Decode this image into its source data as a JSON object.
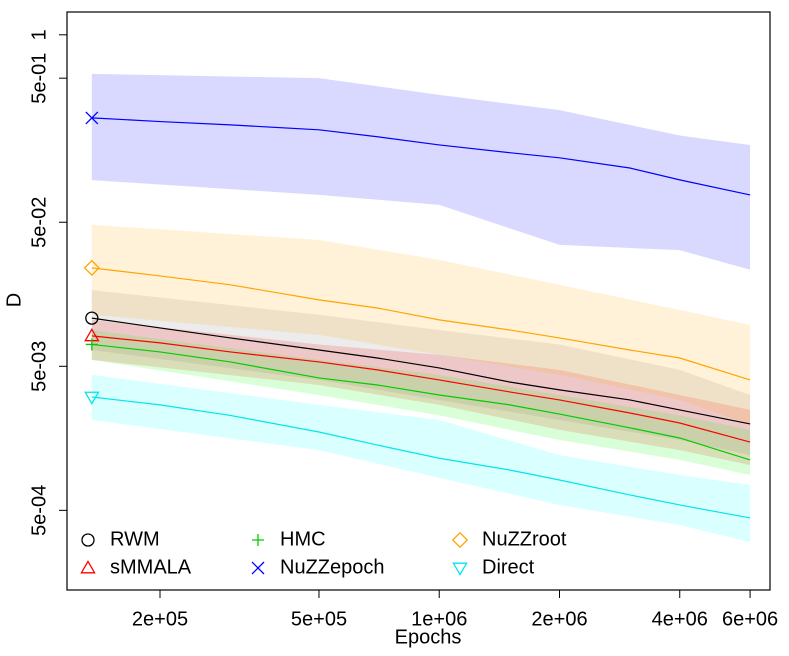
{
  "chart_data": {
    "type": "line",
    "xlabel": "Epochs",
    "ylabel": "D",
    "xlog": true,
    "ylog": true,
    "xlim": [
      117000,
      6730000
    ],
    "ylim": [
      0.00014,
      1.44
    ],
    "xticks": [
      {
        "value": 200000,
        "label": "2e+05"
      },
      {
        "value": 500000,
        "label": "5e+05"
      },
      {
        "value": 1000000,
        "label": "1e+06"
      },
      {
        "value": 2000000,
        "label": "2e+06"
      },
      {
        "value": 4000000,
        "label": "4e+06"
      },
      {
        "value": 6000000,
        "label": "6e+06"
      }
    ],
    "yticks": [
      1,
      {
        "value": 0.5,
        "label": "5e-01"
      },
      {
        "value": 0.05,
        "label": "5e-02"
      },
      {
        "value": 0.005,
        "label": "5e-03"
      },
      {
        "value": 0.0005,
        "label": "5e-04"
      }
    ],
    "x": [
      135000,
      200000,
      300000,
      500000,
      700000,
      1000000,
      1500000,
      2000000,
      3000000,
      4000000,
      6000000
    ],
    "series": [
      {
        "name": "RWM",
        "color": "#000000",
        "band_color": "#808080",
        "marker": "circle",
        "values": [
          0.0108,
          0.00923,
          0.00787,
          0.00649,
          0.00571,
          0.00487,
          0.00389,
          0.00343,
          0.00292,
          0.00249,
          0.00199
        ],
        "band": {
          "x": [
            135000,
            500000,
            1000000,
            2000000,
            4000000,
            6000000
          ],
          "upper": [
            0.0169,
            0.0114,
            0.00894,
            0.00709,
            0.00472,
            0.00316
          ],
          "lower": [
            0.00649,
            0.00402,
            0.00292,
            0.00212,
            0.00154,
            0.00121
          ]
        }
      },
      {
        "name": "sMMALA",
        "color": "#ff0000",
        "band_color": "#ff0000",
        "marker": "triangle",
        "values": [
          0.00813,
          0.00727,
          0.00629,
          0.00536,
          0.00472,
          0.00402,
          0.00332,
          0.00292,
          0.00237,
          0.00202,
          0.00149
        ],
        "band": {
          "x": [
            135000,
            500000,
            1000000,
            2000000,
            4000000,
            6000000
          ],
          "upper": [
            0.0105,
            0.00709,
            0.006,
            0.00472,
            0.00316,
            0.00249
          ],
          "lower": [
            0.00554,
            0.00371,
            0.0027,
            0.00181,
            0.00131,
            0.00103
          ]
        }
      },
      {
        "name": "HMC",
        "color": "#00cd00",
        "band_color": "#00ff00",
        "marker": "plus",
        "values": [
          0.00709,
          0.00629,
          0.00536,
          0.00415,
          0.00371,
          0.00316,
          0.0027,
          0.00233,
          0.00187,
          0.00159,
          0.00112
        ],
        "band": {
          "x": [
            135000,
            500000,
            1000000,
            2000000,
            4000000,
            6000000
          ],
          "upper": [
            0.00894,
            0.00554,
            0.00436,
            0.00316,
            0.00228,
            0.00181
          ],
          "lower": [
            0.00554,
            0.00316,
            0.00228,
            0.00154,
            0.00112,
            0.000879
          ]
        }
      },
      {
        "name": "NuZZepoch",
        "color": "#0000ff",
        "band_color": "#0000ff",
        "marker": "cross",
        "values": [
          0.265,
          0.25,
          0.237,
          0.219,
          0.196,
          0.172,
          0.152,
          0.14,
          0.119,
          0.0984,
          0.0774
        ],
        "band": {
          "x": [
            135000,
            500000,
            1000000,
            2000000,
            4000000,
            6000000
          ],
          "upper": [
            0.536,
            0.5,
            0.383,
            0.3,
            0.2,
            0.172
          ],
          "lower": [
            0.098,
            0.0774,
            0.066,
            0.0348,
            0.032,
            0.0234
          ]
        }
      },
      {
        "name": "NuZZroot",
        "color": "#ffa500",
        "band_color": "#ffa500",
        "marker": "diamond",
        "values": [
          0.0241,
          0.0212,
          0.0184,
          0.01445,
          0.0127,
          0.0105,
          0.00894,
          0.00787,
          0.00649,
          0.00571,
          0.00402
        ],
        "band": {
          "x": [
            135000,
            500000,
            1000000,
            2000000,
            4000000,
            6000000
          ],
          "upper": [
            0.048,
            0.0377,
            0.0274,
            0.0184,
            0.0123,
            0.0097
          ],
          "lower": [
            0.0114,
            0.00826,
            0.006,
            0.00436,
            0.00292,
            0.00196
          ]
        }
      },
      {
        "name": "Direct",
        "color": "#00e5ee",
        "band_color": "#00ffff",
        "marker": "down-triangle",
        "values": [
          0.00306,
          0.0027,
          0.00228,
          0.00175,
          0.00142,
          0.00115,
          0.000953,
          0.000812,
          0.00064,
          0.000545,
          0.000443
        ],
        "band": {
          "x": [
            135000,
            500000,
            1000000,
            2000000,
            4000000,
            6000000
          ],
          "upper": [
            0.00436,
            0.0027,
            0.00212,
            0.00121,
            0.000879,
            0.00075
          ],
          "lower": [
            0.00212,
            0.00131,
            0.00084,
            0.000545,
            0.000396,
            0.000301
          ]
        }
      }
    ],
    "legend_position": "lower left"
  }
}
